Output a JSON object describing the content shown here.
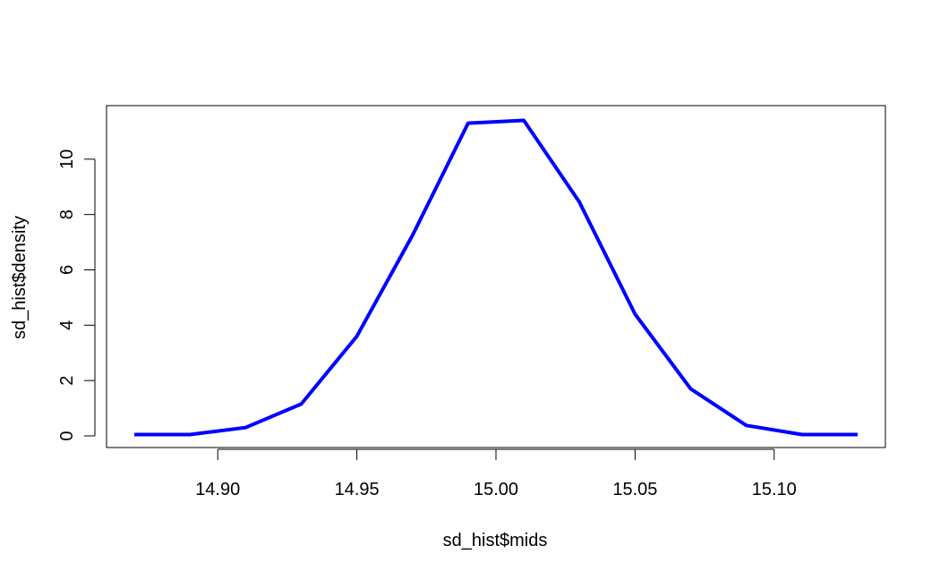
{
  "chart_data": {
    "type": "line",
    "title": "",
    "xlabel": "sd_hist$mids",
    "ylabel": "sd_hist$density",
    "xlim": [
      14.87,
      15.13
    ],
    "ylim": [
      0,
      11.45
    ],
    "x_ticks": [
      14.9,
      14.95,
      15.0,
      15.05,
      15.1
    ],
    "x_tick_labels": [
      "14.90",
      "14.95",
      "15.00",
      "15.05",
      "15.10"
    ],
    "y_ticks": [
      0,
      2,
      4,
      6,
      8,
      10
    ],
    "y_tick_labels": [
      "0",
      "2",
      "4",
      "6",
      "8",
      "10"
    ],
    "grid": false,
    "series": [
      {
        "color": "#0000ff",
        "x": [
          14.87,
          14.89,
          14.91,
          14.93,
          14.95,
          14.97,
          14.99,
          15.01,
          15.03,
          15.05,
          15.07,
          15.09,
          15.11,
          15.13
        ],
        "y": [
          0.05,
          0.05,
          0.3,
          1.15,
          3.6,
          7.25,
          11.3,
          11.4,
          8.45,
          4.4,
          1.7,
          0.38,
          0.05,
          0.05
        ]
      }
    ]
  }
}
